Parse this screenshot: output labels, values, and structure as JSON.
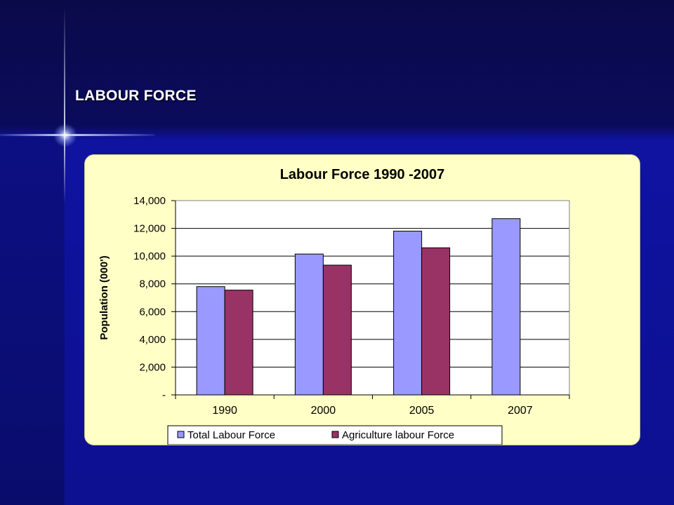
{
  "slide": {
    "title": "LABOUR FORCE"
  },
  "chart_data": {
    "type": "bar",
    "title": "Labour Force 1990 -2007",
    "xlabel": "",
    "ylabel": "Population (000')",
    "categories": [
      "1990",
      "2000",
      "2005",
      "2007"
    ],
    "series": [
      {
        "name": "Total Labour Force",
        "values": [
          7800,
          10150,
          11800,
          12700
        ],
        "color": "#9999ff"
      },
      {
        "name": "Agriculture labour Force",
        "values": [
          7550,
          9350,
          10600,
          null
        ],
        "color": "#993366"
      }
    ],
    "ylim": [
      0,
      14000
    ],
    "yticks": [
      0,
      2000,
      4000,
      6000,
      8000,
      10000,
      12000,
      14000
    ],
    "ytick_labels": [
      "-",
      "2,000",
      "4,000",
      "6,000",
      "8,000",
      "10,000",
      "12,000",
      "14,000"
    ],
    "grid": true,
    "legend_position": "bottom",
    "plot_background": "#ffffff",
    "panel_background": "#ffffc6"
  }
}
